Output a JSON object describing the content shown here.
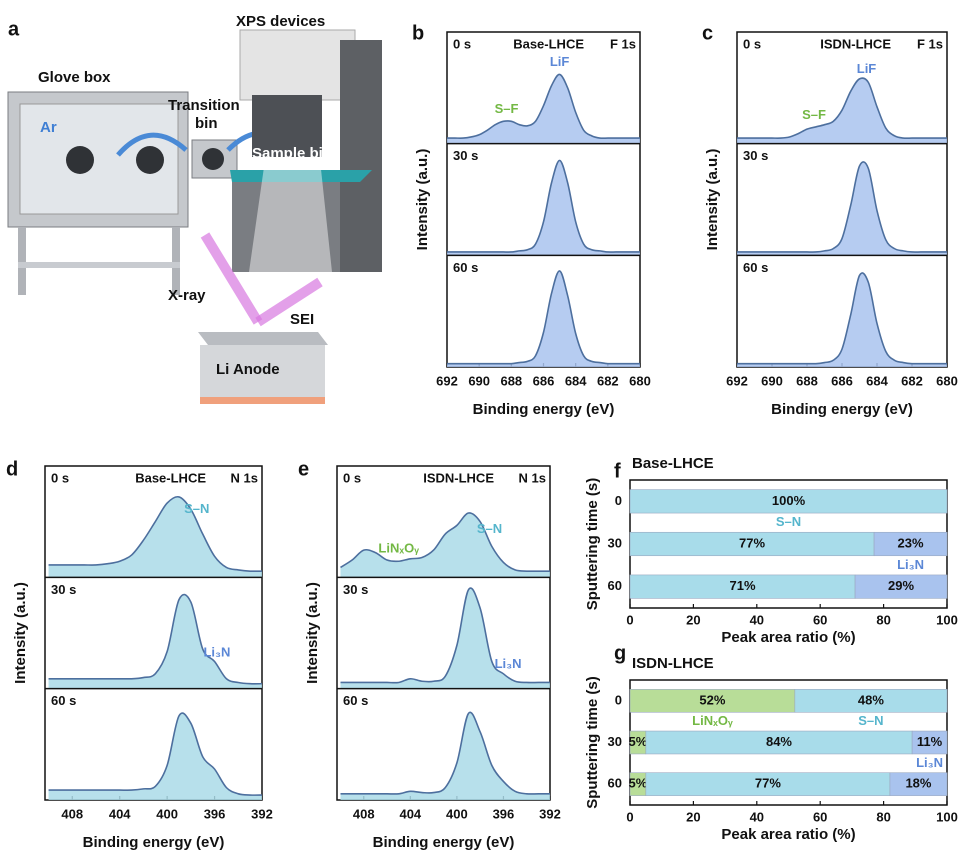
{
  "illustration": {
    "panel": "a",
    "glove_box": "Glove box",
    "xps_devices": "XPS devices",
    "transition_bin": [
      "Transition",
      "bin"
    ],
    "gas": "Ar",
    "sample_bin": "Sample bin",
    "xray": "X-ray",
    "sei": "SEI",
    "anode": "Li Anode"
  },
  "chart_data": [
    {
      "type": "spectrum",
      "label": "b",
      "sample": "Base-LHCE",
      "core_level": "F 1s",
      "xlabel": "Binding energy (eV)",
      "ylabel": "Intensity (a.u.)",
      "xlim": [
        692,
        680
      ],
      "xticks": [
        692,
        690,
        688,
        686,
        684,
        682,
        680
      ],
      "ylim": [
        0,
        1
      ],
      "x": [
        692,
        691.5,
        691,
        690.5,
        690,
        689.5,
        689,
        688.5,
        688,
        687.5,
        687,
        686.5,
        686,
        685.5,
        685,
        684.5,
        684,
        683.5,
        683,
        682.5,
        682,
        681.5,
        681,
        680.5,
        680
      ],
      "subplots": [
        {
          "time": "0 s",
          "color": "#a9c3ee",
          "values": [
            0.05,
            0.05,
            0.05,
            0.06,
            0.08,
            0.12,
            0.17,
            0.2,
            0.2,
            0.17,
            0.16,
            0.2,
            0.34,
            0.52,
            0.62,
            0.5,
            0.28,
            0.12,
            0.07,
            0.05,
            0.05,
            0.05,
            0.05,
            0.05,
            0.05
          ],
          "annotations": [
            {
              "text": "S–F",
              "x": 688.3,
              "color": "#73b844"
            },
            {
              "text": "LiF",
              "x": 685,
              "color": "#5b87d6"
            }
          ]
        },
        {
          "time": "30 s",
          "color": "#a9c3ee",
          "values": [
            0.03,
            0.03,
            0.03,
            0.03,
            0.03,
            0.03,
            0.03,
            0.03,
            0.03,
            0.04,
            0.05,
            0.1,
            0.3,
            0.65,
            0.85,
            0.65,
            0.3,
            0.1,
            0.05,
            0.04,
            0.03,
            0.03,
            0.03,
            0.03,
            0.03
          ],
          "annotations": []
        },
        {
          "time": "60 s",
          "color": "#a9c3ee",
          "values": [
            0.03,
            0.03,
            0.03,
            0.03,
            0.03,
            0.03,
            0.03,
            0.03,
            0.03,
            0.04,
            0.05,
            0.1,
            0.31,
            0.66,
            0.86,
            0.64,
            0.3,
            0.1,
            0.05,
            0.04,
            0.03,
            0.03,
            0.03,
            0.03,
            0.03
          ],
          "annotations": []
        }
      ]
    },
    {
      "type": "spectrum",
      "label": "c",
      "sample": "ISDN-LHCE",
      "core_level": "F 1s",
      "xlabel": "Binding energy (eV)",
      "ylabel": "Intensity (a.u.)",
      "xlim": [
        692,
        680
      ],
      "xticks": [
        692,
        690,
        688,
        686,
        684,
        682,
        680
      ],
      "ylim": [
        0,
        1
      ],
      "x": [
        692,
        691.5,
        691,
        690.5,
        690,
        689.5,
        689,
        688.5,
        688,
        687.5,
        687,
        686.5,
        686,
        685.5,
        685,
        684.5,
        684,
        683.5,
        683,
        682.5,
        682,
        681.5,
        681,
        680.5,
        680
      ],
      "subplots": [
        {
          "time": "0 s",
          "color": "#a9c3ee",
          "values": [
            0.05,
            0.05,
            0.05,
            0.05,
            0.05,
            0.05,
            0.06,
            0.09,
            0.13,
            0.15,
            0.17,
            0.2,
            0.3,
            0.47,
            0.58,
            0.55,
            0.33,
            0.14,
            0.07,
            0.05,
            0.05,
            0.05,
            0.05,
            0.05,
            0.05
          ],
          "annotations": [
            {
              "text": "S–F",
              "x": 687.6,
              "color": "#73b844"
            },
            {
              "text": "LiF",
              "x": 684.6,
              "color": "#5b87d6"
            }
          ]
        },
        {
          "time": "30 s",
          "color": "#a9c3ee",
          "values": [
            0.03,
            0.03,
            0.03,
            0.03,
            0.03,
            0.03,
            0.03,
            0.03,
            0.03,
            0.03,
            0.04,
            0.06,
            0.15,
            0.45,
            0.8,
            0.78,
            0.4,
            0.14,
            0.06,
            0.04,
            0.03,
            0.03,
            0.03,
            0.03,
            0.03
          ],
          "annotations": []
        },
        {
          "time": "60 s",
          "color": "#a9c3ee",
          "values": [
            0.03,
            0.03,
            0.03,
            0.03,
            0.03,
            0.03,
            0.03,
            0.03,
            0.03,
            0.03,
            0.04,
            0.06,
            0.16,
            0.47,
            0.82,
            0.76,
            0.39,
            0.14,
            0.06,
            0.04,
            0.03,
            0.03,
            0.03,
            0.03,
            0.03
          ],
          "annotations": []
        }
      ]
    },
    {
      "type": "spectrum",
      "label": "d",
      "sample": "Base-LHCE",
      "core_level": "N 1s",
      "xlabel": "Binding energy (eV)",
      "ylabel": "Intensity (a.u.)",
      "xlim": [
        410.3,
        392
      ],
      "xticks": [
        408,
        404,
        400,
        396,
        392
      ],
      "ylim": [
        0,
        0.9
      ],
      "x": [
        410,
        409,
        408,
        407,
        406,
        405,
        404,
        403,
        402,
        401,
        400,
        399,
        398,
        397,
        396,
        395,
        394,
        393,
        392
      ],
      "subplots": [
        {
          "time": "0 s",
          "color": "#aadbe8",
          "values": [
            0.1,
            0.1,
            0.1,
            0.1,
            0.1,
            0.11,
            0.13,
            0.18,
            0.3,
            0.45,
            0.6,
            0.65,
            0.55,
            0.35,
            0.17,
            0.08,
            0.06,
            0.05,
            0.05
          ],
          "annotations": [
            {
              "text": "S–N",
              "x": 397.5,
              "color": "#55b5cc"
            }
          ]
        },
        {
          "time": "30 s",
          "color": "#aadbe8",
          "values": [
            0.08,
            0.08,
            0.08,
            0.08,
            0.08,
            0.08,
            0.08,
            0.08,
            0.09,
            0.12,
            0.3,
            0.72,
            0.7,
            0.32,
            0.22,
            0.08,
            0.05,
            0.04,
            0.04
          ],
          "annotations": [
            {
              "text": "Li₃N",
              "x": 395.8,
              "color": "#5b87d6"
            }
          ]
        },
        {
          "time": "60 s",
          "color": "#aadbe8",
          "values": [
            0.08,
            0.08,
            0.08,
            0.08,
            0.08,
            0.08,
            0.08,
            0.08,
            0.09,
            0.11,
            0.28,
            0.68,
            0.62,
            0.35,
            0.25,
            0.1,
            0.05,
            0.04,
            0.04
          ],
          "annotations": []
        }
      ]
    },
    {
      "type": "spectrum",
      "label": "e",
      "sample": "ISDN-LHCE",
      "core_level": "N 1s",
      "xlabel": "Binding energy (eV)",
      "ylabel": "Intensity (a.u.)",
      "xlim": [
        410.3,
        392
      ],
      "xticks": [
        408,
        404,
        400,
        396,
        392
      ],
      "ylim": [
        0,
        0.9
      ],
      "x": [
        410,
        409,
        408,
        407,
        406,
        405,
        404,
        403,
        402,
        401,
        400,
        399,
        398,
        397,
        396,
        395,
        394,
        393,
        392
      ],
      "subplots": [
        {
          "time": "0 s",
          "color": "#aadbe8",
          "values": [
            0.08,
            0.14,
            0.22,
            0.2,
            0.14,
            0.13,
            0.15,
            0.16,
            0.22,
            0.35,
            0.42,
            0.52,
            0.45,
            0.25,
            0.12,
            0.06,
            0.05,
            0.05,
            0.05
          ],
          "annotations": [
            {
              "text": "LiNₓOᵧ",
              "x": 405,
              "color": "#73b844"
            },
            {
              "text": "S–N",
              "x": 397.2,
              "color": "#55b5cc"
            }
          ]
        },
        {
          "time": "30 s",
          "color": "#aadbe8",
          "values": [
            0.05,
            0.05,
            0.05,
            0.05,
            0.05,
            0.05,
            0.08,
            0.06,
            0.06,
            0.1,
            0.35,
            0.8,
            0.65,
            0.22,
            0.12,
            0.06,
            0.05,
            0.05,
            0.05
          ],
          "annotations": [
            {
              "text": "Li₃N",
              "x": 395.6,
              "color": "#5b87d6"
            }
          ]
        },
        {
          "time": "60 s",
          "color": "#aadbe8",
          "values": [
            0.05,
            0.05,
            0.05,
            0.05,
            0.05,
            0.05,
            0.07,
            0.06,
            0.06,
            0.1,
            0.3,
            0.7,
            0.55,
            0.28,
            0.15,
            0.07,
            0.05,
            0.05,
            0.05
          ],
          "annotations": []
        }
      ]
    },
    {
      "type": "stackedbar",
      "label": "f",
      "title": "Base-LHCE",
      "xlabel": "Peak area ratio (%)",
      "ylabel": "Sputtering time (s)",
      "categories": [
        "0",
        "30",
        "60"
      ],
      "xlim": [
        0,
        100
      ],
      "xticks": [
        0,
        20,
        40,
        60,
        80,
        100
      ],
      "series": [
        {
          "name": "S–N",
          "color": "#a8dcea",
          "name_color": "#55b5cc",
          "values": [
            100,
            77,
            71
          ],
          "value_labels": [
            "100%",
            "77%",
            "71%"
          ]
        },
        {
          "name": "Li₃N",
          "color": "#a9c3ee",
          "name_color": "#5b87d6",
          "values": [
            0,
            23,
            29
          ],
          "value_labels": [
            null,
            "23%",
            "29%"
          ]
        }
      ]
    },
    {
      "type": "stackedbar",
      "label": "g",
      "title": "ISDN-LHCE",
      "xlabel": "Peak area ratio (%)",
      "ylabel": "Sputtering time (s)",
      "categories": [
        "0",
        "30",
        "60"
      ],
      "xlim": [
        0,
        100
      ],
      "xticks": [
        0,
        20,
        40,
        60,
        80,
        100
      ],
      "series": [
        {
          "name": "LiNₓOᵧ",
          "color": "#b8dd98",
          "name_color": "#73b844",
          "values": [
            52,
            5,
            5
          ],
          "value_labels": [
            "52%",
            "5%",
            "5%"
          ]
        },
        {
          "name": "S–N",
          "color": "#a8dcea",
          "name_color": "#55b5cc",
          "values": [
            48,
            84,
            77
          ],
          "value_labels": [
            "48%",
            "84%",
            "77%"
          ]
        },
        {
          "name": "Li₃N",
          "color": "#a9c3ee",
          "name_color": "#5b87d6",
          "values": [
            0,
            11,
            18
          ],
          "value_labels": [
            null,
            "11%",
            "18%"
          ]
        }
      ]
    }
  ]
}
